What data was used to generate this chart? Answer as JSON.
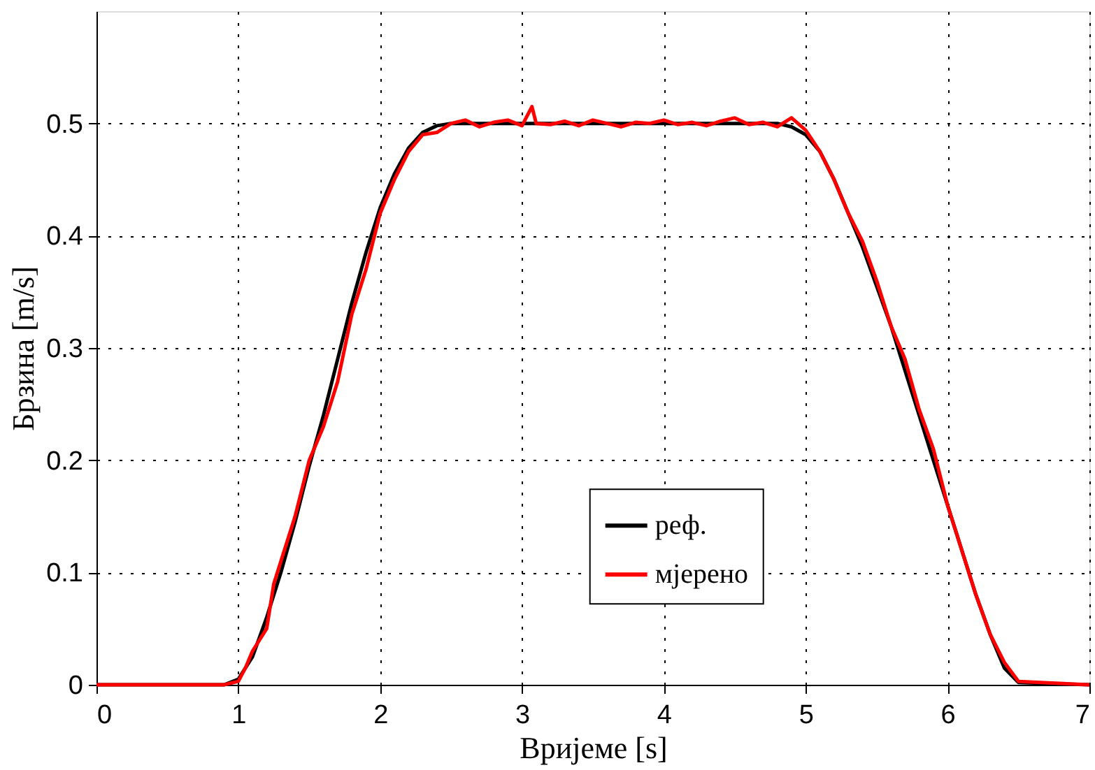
{
  "chart_data": {
    "type": "line",
    "xlabel": "Вријеме [s]",
    "ylabel": "Брзина [m/s]",
    "xlim": [
      0,
      7
    ],
    "xticks": [
      0,
      1,
      2,
      3,
      4,
      5,
      6,
      7
    ],
    "ylim": [
      0,
      0.6
    ],
    "yticks": [
      0,
      0.1,
      0.2,
      0.3,
      0.4,
      0.5
    ],
    "grid": true,
    "legend": "bottom right",
    "line_style": "solid",
    "marker": "none",
    "series": [
      {
        "name": "реф.",
        "color": "#000000",
        "x": [
          0,
          0.9,
          1.0,
          1.1,
          1.2,
          1.3,
          1.4,
          1.5,
          1.6,
          1.7,
          1.8,
          1.9,
          2.0,
          2.1,
          2.2,
          2.3,
          2.4,
          2.5,
          4.8,
          4.9,
          5.0,
          5.1,
          5.2,
          5.3,
          5.4,
          5.5,
          5.6,
          5.7,
          5.8,
          5.9,
          6.0,
          6.1,
          6.2,
          6.3,
          6.4,
          6.5,
          7.0
        ],
        "values": [
          0,
          0,
          0.005,
          0.025,
          0.06,
          0.1,
          0.145,
          0.195,
          0.24,
          0.29,
          0.34,
          0.385,
          0.425,
          0.455,
          0.478,
          0.492,
          0.498,
          0.5,
          0.5,
          0.497,
          0.49,
          0.475,
          0.45,
          0.42,
          0.39,
          0.355,
          0.32,
          0.28,
          0.24,
          0.2,
          0.16,
          0.12,
          0.08,
          0.045,
          0.015,
          0.002,
          0
        ]
      },
      {
        "name": "мјерено",
        "color": "#ff0000",
        "x": [
          0,
          0.9,
          1.0,
          1.05,
          1.1,
          1.15,
          1.2,
          1.25,
          1.3,
          1.4,
          1.5,
          1.6,
          1.7,
          1.8,
          1.9,
          2.0,
          2.1,
          2.2,
          2.3,
          2.4,
          2.5,
          2.6,
          2.7,
          2.8,
          2.9,
          3.0,
          3.07,
          3.1,
          3.2,
          3.3,
          3.4,
          3.5,
          3.6,
          3.7,
          3.8,
          3.9,
          4.0,
          4.1,
          4.2,
          4.3,
          4.4,
          4.5,
          4.6,
          4.7,
          4.8,
          4.9,
          5.0,
          5.1,
          5.2,
          5.3,
          5.4,
          5.5,
          5.6,
          5.7,
          5.8,
          5.9,
          6.0,
          6.1,
          6.2,
          6.3,
          6.4,
          6.5,
          7.0
        ],
        "values": [
          0,
          0,
          0.003,
          0.015,
          0.03,
          0.04,
          0.05,
          0.09,
          0.11,
          0.15,
          0.2,
          0.23,
          0.27,
          0.33,
          0.37,
          0.42,
          0.45,
          0.475,
          0.49,
          0.492,
          0.5,
          0.503,
          0.497,
          0.501,
          0.503,
          0.498,
          0.515,
          0.5,
          0.499,
          0.502,
          0.498,
          0.503,
          0.5,
          0.497,
          0.501,
          0.5,
          0.503,
          0.499,
          0.501,
          0.498,
          0.502,
          0.505,
          0.499,
          0.501,
          0.497,
          0.505,
          0.494,
          0.475,
          0.45,
          0.42,
          0.395,
          0.36,
          0.32,
          0.29,
          0.245,
          0.21,
          0.16,
          0.12,
          0.08,
          0.045,
          0.02,
          0.003,
          0
        ]
      }
    ]
  }
}
